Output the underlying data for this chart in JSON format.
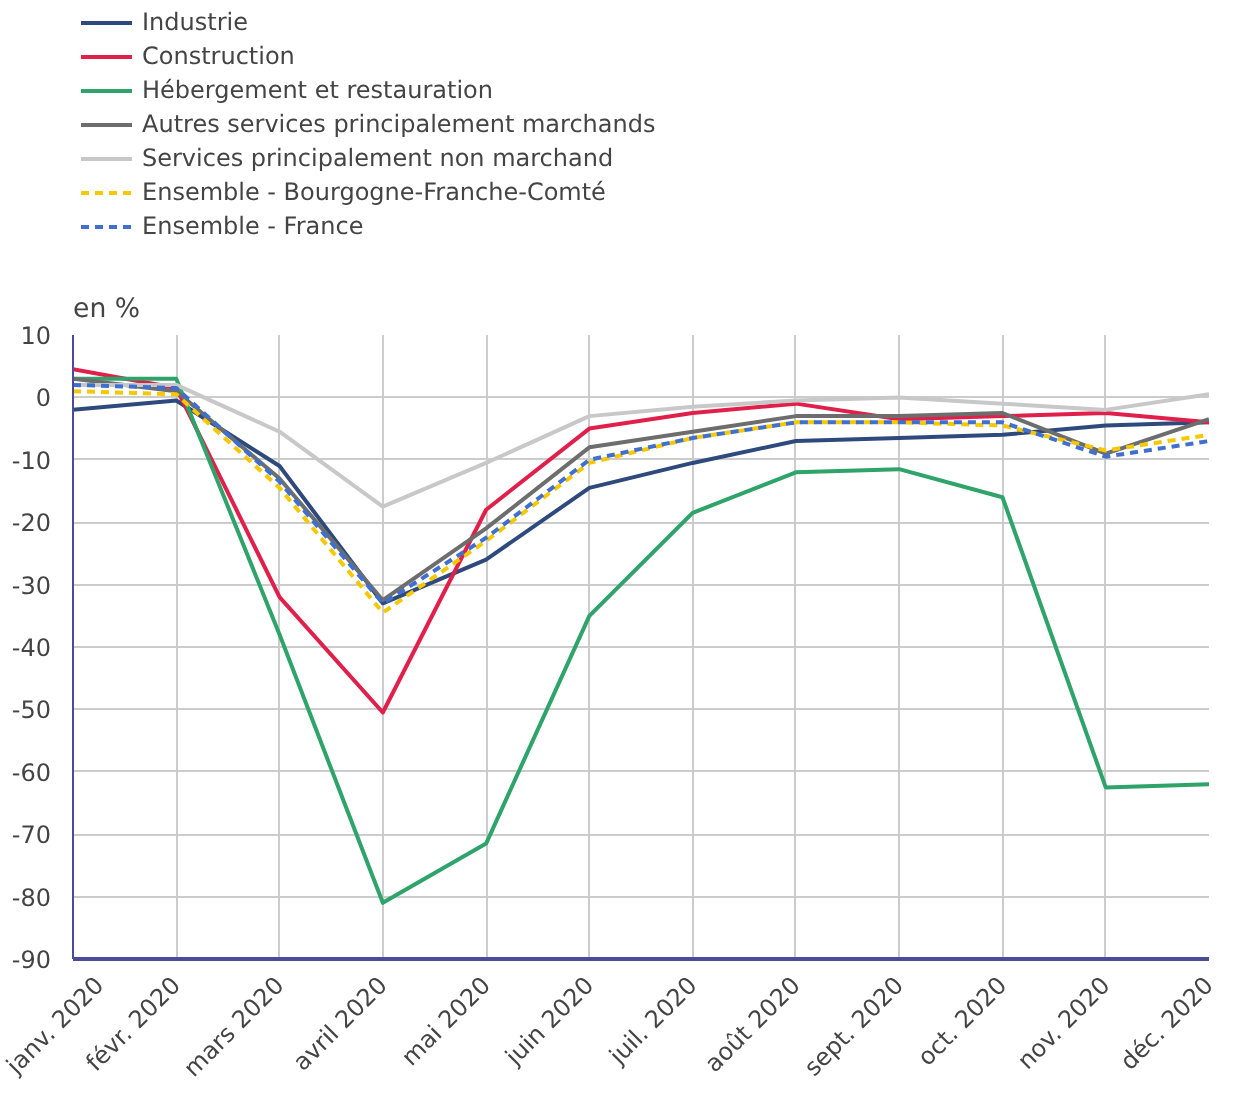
{
  "chart_data": {
    "type": "line",
    "ylabel": "en %",
    "categories": [
      "janv. 2020",
      "févr. 2020",
      "mars 2020",
      "avril 2020",
      "mai 2020",
      "juin 2020",
      "juil. 2020",
      "août 2020",
      "sept. 2020",
      "oct. 2020",
      "nov. 2020",
      "déc. 2020"
    ],
    "series": [
      {
        "name": "Industrie",
        "color": "#2e4a7d",
        "line_style": "solid",
        "values": [
          -2,
          -0.5,
          -11,
          -33,
          -26,
          -14.5,
          -10.5,
          -7,
          -6.5,
          -6,
          -4.5,
          -4
        ]
      },
      {
        "name": "Construction",
        "color": "#e0204b",
        "line_style": "solid",
        "values": [
          4.5,
          1.5,
          -32,
          -50.5,
          -18,
          -5,
          -2.5,
          -1,
          -3.5,
          -3,
          -2.5,
          -4
        ]
      },
      {
        "name": "Hébergement et restauration",
        "color": "#2ea36a",
        "line_style": "solid",
        "values": [
          3,
          3,
          -38,
          -81,
          -71.5,
          -35,
          -18.5,
          -12,
          -11.5,
          -16,
          -62.5,
          -62
        ]
      },
      {
        "name": "Autres services principalement marchands",
        "color": "#6d6d6d",
        "line_style": "solid",
        "values": [
          3,
          1,
          -13,
          -32.5,
          -21,
          -8,
          -5.5,
          -3,
          -3,
          -2.5,
          -9,
          -3.5
        ]
      },
      {
        "name": "Services principalement non marchand",
        "color": "#c8c8c8",
        "line_style": "solid",
        "values": [
          2,
          2,
          -5.5,
          -17.5,
          -10.5,
          -3,
          -1.5,
          -0.5,
          0,
          -1,
          -2,
          0.5
        ]
      },
      {
        "name": "Ensemble - Bourgogne-Franche-Comté",
        "color": "#f5c800",
        "line_style": "dashed",
        "values": [
          1,
          0.5,
          -14.5,
          -34.5,
          -23,
          -10.5,
          -6.5,
          -4,
          -4,
          -4.5,
          -8.5,
          -6
        ]
      },
      {
        "name": "Ensemble - France",
        "color": "#3f6fcf",
        "line_style": "dashed",
        "values": [
          2,
          1.5,
          -13.5,
          -33,
          -22.5,
          -10,
          -6.5,
          -4,
          -4,
          -4,
          -9.5,
          -7
        ]
      }
    ],
    "ylim": [
      -90,
      10
    ],
    "yticks": [
      -90,
      -80,
      -70,
      -60,
      -50,
      -40,
      -30,
      -20,
      -10,
      0,
      10
    ],
    "grid": true,
    "legend": "top left",
    "marker": "none"
  }
}
